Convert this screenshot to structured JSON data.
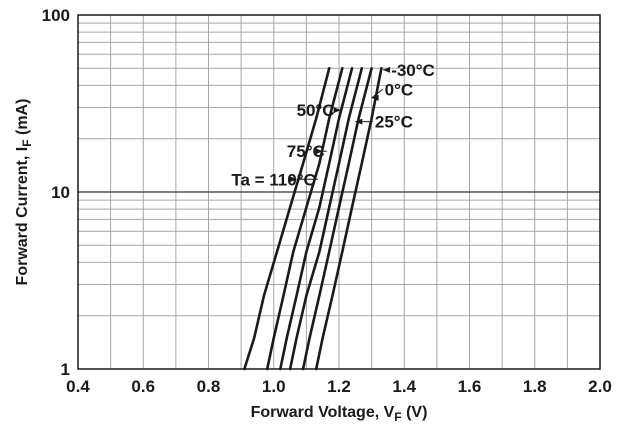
{
  "chart_data": {
    "type": "line",
    "xlabel": "Forward Voltage, V",
    "xlabel_sub": "F",
    "xlabel_unit": " (V)",
    "ylabel": "Forward Current, I",
    "ylabel_sub": "F",
    "ylabel_unit": " (mA)",
    "xlim": [
      0.4,
      2.0
    ],
    "ylim": [
      1,
      100
    ],
    "yscale": "log",
    "grid": true,
    "x_ticks": [
      "0.4",
      "0.6",
      "0.8",
      "1.0",
      "1.2",
      "1.4",
      "1.6",
      "1.8",
      "2.0"
    ],
    "y_ticks": [
      "1",
      "10",
      "100"
    ],
    "series": [
      {
        "name": "Ta = 110°C",
        "x": [
          0.91,
          0.94,
          0.97,
          1.01,
          1.05,
          1.09,
          1.13,
          1.17
        ],
        "y": [
          1,
          1.5,
          2.6,
          4.6,
          8.2,
          14.5,
          26,
          50
        ]
      },
      {
        "name": "75°C",
        "x": [
          0.98,
          1.0,
          1.03,
          1.06,
          1.1,
          1.14,
          1.17,
          1.21
        ],
        "y": [
          1,
          1.5,
          2.6,
          4.6,
          8.2,
          14.5,
          26,
          50
        ]
      },
      {
        "name": "50°C",
        "x": [
          1.02,
          1.04,
          1.07,
          1.1,
          1.14,
          1.17,
          1.2,
          1.24
        ],
        "y": [
          1,
          1.5,
          2.6,
          4.6,
          8.2,
          14.5,
          26,
          50
        ]
      },
      {
        "name": "25°C",
        "x": [
          1.05,
          1.07,
          1.1,
          1.14,
          1.17,
          1.2,
          1.23,
          1.27
        ],
        "y": [
          1,
          1.5,
          2.6,
          4.6,
          8.2,
          14.5,
          26,
          50
        ]
      },
      {
        "name": "0°C",
        "x": [
          1.09,
          1.11,
          1.14,
          1.17,
          1.2,
          1.23,
          1.26,
          1.3
        ],
        "y": [
          1,
          1.5,
          2.6,
          4.6,
          8.2,
          14.5,
          26,
          50
        ]
      },
      {
        "name": "-30°C",
        "x": [
          1.13,
          1.15,
          1.18,
          1.21,
          1.24,
          1.27,
          1.3,
          1.33
        ],
        "y": [
          1,
          1.5,
          2.6,
          4.6,
          8.2,
          14.5,
          26,
          50
        ]
      }
    ],
    "annotations": [
      {
        "text": "-30°C",
        "x": 1.36,
        "y": 49,
        "target_x": 1.335,
        "target_y": 49
      },
      {
        "text": "0°C",
        "x": 1.34,
        "y": 38,
        "target_x": 1.3,
        "target_y": 34
      },
      {
        "text": "25°C",
        "x": 1.31,
        "y": 25,
        "target_x": 1.25,
        "target_y": 25
      },
      {
        "text": "50°C",
        "x": 1.07,
        "y": 29,
        "target_x": 1.205,
        "target_y": 29
      },
      {
        "text": "75°C",
        "x": 1.04,
        "y": 17,
        "target_x": 1.15,
        "target_y": 17
      },
      {
        "text": "Ta = 110°C",
        "x": 0.87,
        "y": 11.8,
        "target_x": 1.07,
        "target_y": 11.8
      }
    ],
    "colors": {
      "line": "#1a1a1a",
      "grid": "#a6a6a6",
      "axis": "#1a1a1a"
    }
  }
}
